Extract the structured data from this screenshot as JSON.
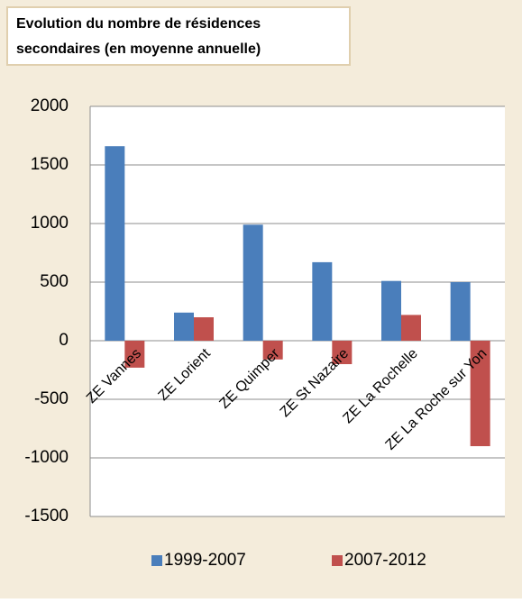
{
  "chart_data": {
    "type": "bar",
    "title": [
      "Evolution du nombre de résidences",
      "secondaires (en moyenne annuelle)"
    ],
    "categories": [
      "ZE Vannes",
      "ZE Lorient",
      "ZE Quimper",
      "ZE St Nazaire",
      "ZE La Rochelle",
      "ZE La Roche sur Yon"
    ],
    "series": [
      {
        "name": "1999-2007",
        "color": "#4a7ebb",
        "values": [
          1660,
          240,
          990,
          670,
          510,
          500
        ]
      },
      {
        "name": "2007-2012",
        "color": "#c0504d",
        "values": [
          -230,
          200,
          -160,
          -200,
          220,
          -900
        ]
      }
    ],
    "ylim": [
      -1500,
      2000
    ],
    "yticks": [
      -1500,
      -1000,
      -500,
      0,
      500,
      1000,
      1500,
      2000
    ],
    "grid": true,
    "legend": "bottom"
  }
}
